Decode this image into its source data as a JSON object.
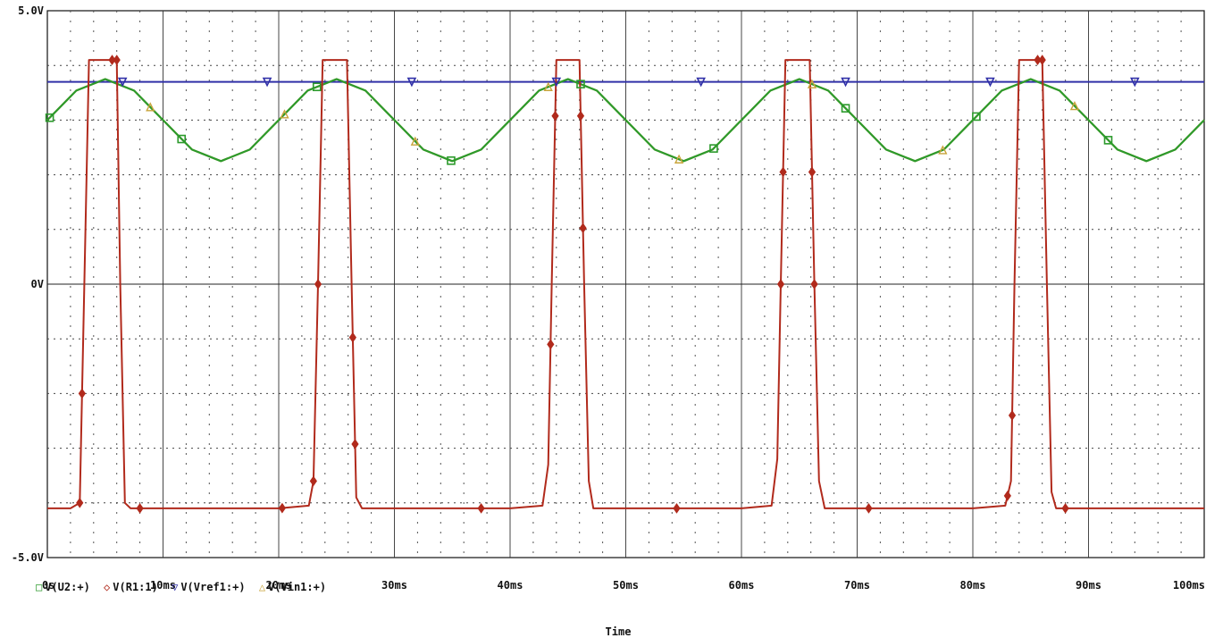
{
  "chart_data": {
    "type": "line",
    "xlabel": "Time",
    "ylabel": "",
    "xlim": [
      0,
      100
    ],
    "ylim": [
      -5,
      5
    ],
    "x_ticks": [
      "0s",
      "10ms",
      "20ms",
      "30ms",
      "40ms",
      "50ms",
      "60ms",
      "70ms",
      "80ms",
      "90ms",
      "100ms"
    ],
    "y_ticks": [
      "5.0V",
      "0V",
      "-5.0V"
    ],
    "grid": true,
    "legend_position": "bottom-left",
    "series": [
      {
        "name": "V(U2:+)",
        "symbol": "□",
        "color": "#2c9a2c",
        "marker_x": [
          0.2,
          11.6,
          23.3,
          34.9,
          46.1,
          57.6,
          69.0,
          80.3,
          91.7
        ],
        "x": [
          0,
          2.5,
          5,
          7.5,
          10,
          12.5,
          15,
          17.5,
          20,
          22.5,
          25,
          27.5,
          30,
          32.5,
          35,
          37.5,
          40,
          42.5,
          45,
          47.5,
          50,
          52.5,
          55,
          57.5,
          60,
          62.5,
          65,
          67.5,
          70,
          72.5,
          75,
          77.5,
          80,
          82.5,
          85,
          87.5,
          90,
          92.5,
          95,
          97.5,
          100
        ],
        "y": [
          3.0,
          3.54,
          3.75,
          3.54,
          3.0,
          2.46,
          2.25,
          2.46,
          3.0,
          3.54,
          3.75,
          3.54,
          3.0,
          2.46,
          2.25,
          2.46,
          3.0,
          3.54,
          3.75,
          3.54,
          3.0,
          2.46,
          2.25,
          2.46,
          3.0,
          3.54,
          3.75,
          3.54,
          3.0,
          2.46,
          2.25,
          2.46,
          3.0,
          3.54,
          3.75,
          3.54,
          3.0,
          2.46,
          2.25,
          2.46,
          3.0
        ]
      },
      {
        "name": "V(R1:1)",
        "symbol": "◇",
        "color": "#b12a1c",
        "marker_x": [
          2.8,
          3.0,
          5.6,
          6.0,
          8.0,
          20.3,
          23.0,
          23.4,
          26.4,
          26.6,
          37.5,
          43.5,
          43.9,
          46.1,
          46.3,
          54.4,
          63.4,
          63.6,
          66.1,
          66.3,
          71.0,
          83.0,
          83.4,
          85.6,
          86.0,
          88.0
        ],
        "x": [
          0,
          2.0,
          2.8,
          3.2,
          3.6,
          6.0,
          6.3,
          6.7,
          7.2,
          20.0,
          22.6,
          23.0,
          23.4,
          23.8,
          25.9,
          26.3,
          26.7,
          27.2,
          40.0,
          42.8,
          43.3,
          43.6,
          44.0,
          46.0,
          46.4,
          46.8,
          47.2,
          60.0,
          62.6,
          63.1,
          63.4,
          63.8,
          65.9,
          66.3,
          66.7,
          67.2,
          80.0,
          82.8,
          83.3,
          83.6,
          84.0,
          86.0,
          86.4,
          86.8,
          87.2,
          100
        ],
        "y": [
          -4.1,
          -4.1,
          -4.0,
          0,
          4.1,
          4.1,
          0,
          -4.0,
          -4.1,
          -4.1,
          -4.05,
          -3.6,
          0,
          4.1,
          4.1,
          0,
          -3.9,
          -4.1,
          -4.1,
          -4.05,
          -3.3,
          0,
          4.1,
          4.1,
          0,
          -3.6,
          -4.1,
          -4.1,
          -4.05,
          -3.2,
          0,
          4.1,
          4.1,
          0,
          -3.6,
          -4.1,
          -4.1,
          -4.05,
          -3.6,
          0,
          4.1,
          4.1,
          0,
          -3.8,
          -4.1,
          -4.1
        ]
      },
      {
        "name": "V(Vref1:+)",
        "symbol": "▽",
        "color": "#3030a8",
        "marker_x": [
          6.5,
          19.0,
          31.5,
          44.0,
          56.5,
          69.0,
          81.5,
          94.0
        ],
        "x": [
          0,
          100
        ],
        "y": [
          3.7,
          3.7
        ]
      },
      {
        "name": "V(Vin1:+)",
        "symbol": "△",
        "color": "#c8a43a",
        "marker_x": [
          8.9,
          20.5,
          31.8,
          43.3,
          54.6,
          66.1,
          77.4,
          88.8
        ],
        "x": [
          0,
          2.5,
          5,
          7.5,
          10,
          12.5,
          15,
          17.5,
          20,
          22.5,
          25,
          27.5,
          30,
          32.5,
          35,
          37.5,
          40,
          42.5,
          45,
          47.5,
          50,
          52.5,
          55,
          57.5,
          60,
          62.5,
          65,
          67.5,
          70,
          72.5,
          75,
          77.5,
          80,
          82.5,
          85,
          87.5,
          90,
          92.5,
          95,
          97.5,
          100
        ],
        "y": [
          3.0,
          3.54,
          3.75,
          3.54,
          3.0,
          2.46,
          2.25,
          2.46,
          3.0,
          3.54,
          3.75,
          3.54,
          3.0,
          2.46,
          2.25,
          2.46,
          3.0,
          3.54,
          3.75,
          3.54,
          3.0,
          2.46,
          2.25,
          2.46,
          3.0,
          3.54,
          3.75,
          3.54,
          3.0,
          2.46,
          2.25,
          2.46,
          3.0,
          3.54,
          3.75,
          3.54,
          3.0,
          2.46,
          2.25,
          2.46,
          3.0
        ]
      }
    ]
  }
}
